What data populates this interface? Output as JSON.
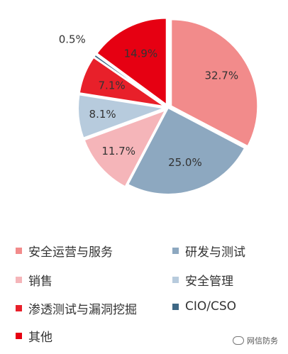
{
  "chart_data": {
    "type": "pie",
    "slices": [
      {
        "label": "安全运营与服务",
        "value": 32.7,
        "display": "32.7%",
        "color": "#f28b8b",
        "legend": "安全运营与服务"
      },
      {
        "label": "研发与测试",
        "value": 25.0,
        "display": "25.0%",
        "color": "#8da8c0",
        "legend": "研发与测试"
      },
      {
        "label": "销售",
        "value": 11.7,
        "display": "11.7%",
        "color": "#f5b5b9",
        "legend": "销售"
      },
      {
        "label": "安全管理",
        "value": 8.1,
        "display": "8.1%",
        "color": "#b7cbdd",
        "legend": "安全管理"
      },
      {
        "label": "渗透测试与漏洞挖掘",
        "value": 7.1,
        "display": "7.1%",
        "color": "#e8202a",
        "legend": "渗透测试与漏洞挖掘"
      },
      {
        "label": "CIO/CSO",
        "value": 0.5,
        "display": "0.5%",
        "color": "#3e6885",
        "legend": "CIO/CSO"
      },
      {
        "label": "其他",
        "value": 14.9,
        "display": "14.9%",
        "color": "#e60012",
        "legend": "其他"
      }
    ],
    "legend_placement": "bottom"
  },
  "watermark": {
    "text": "网信防务"
  }
}
